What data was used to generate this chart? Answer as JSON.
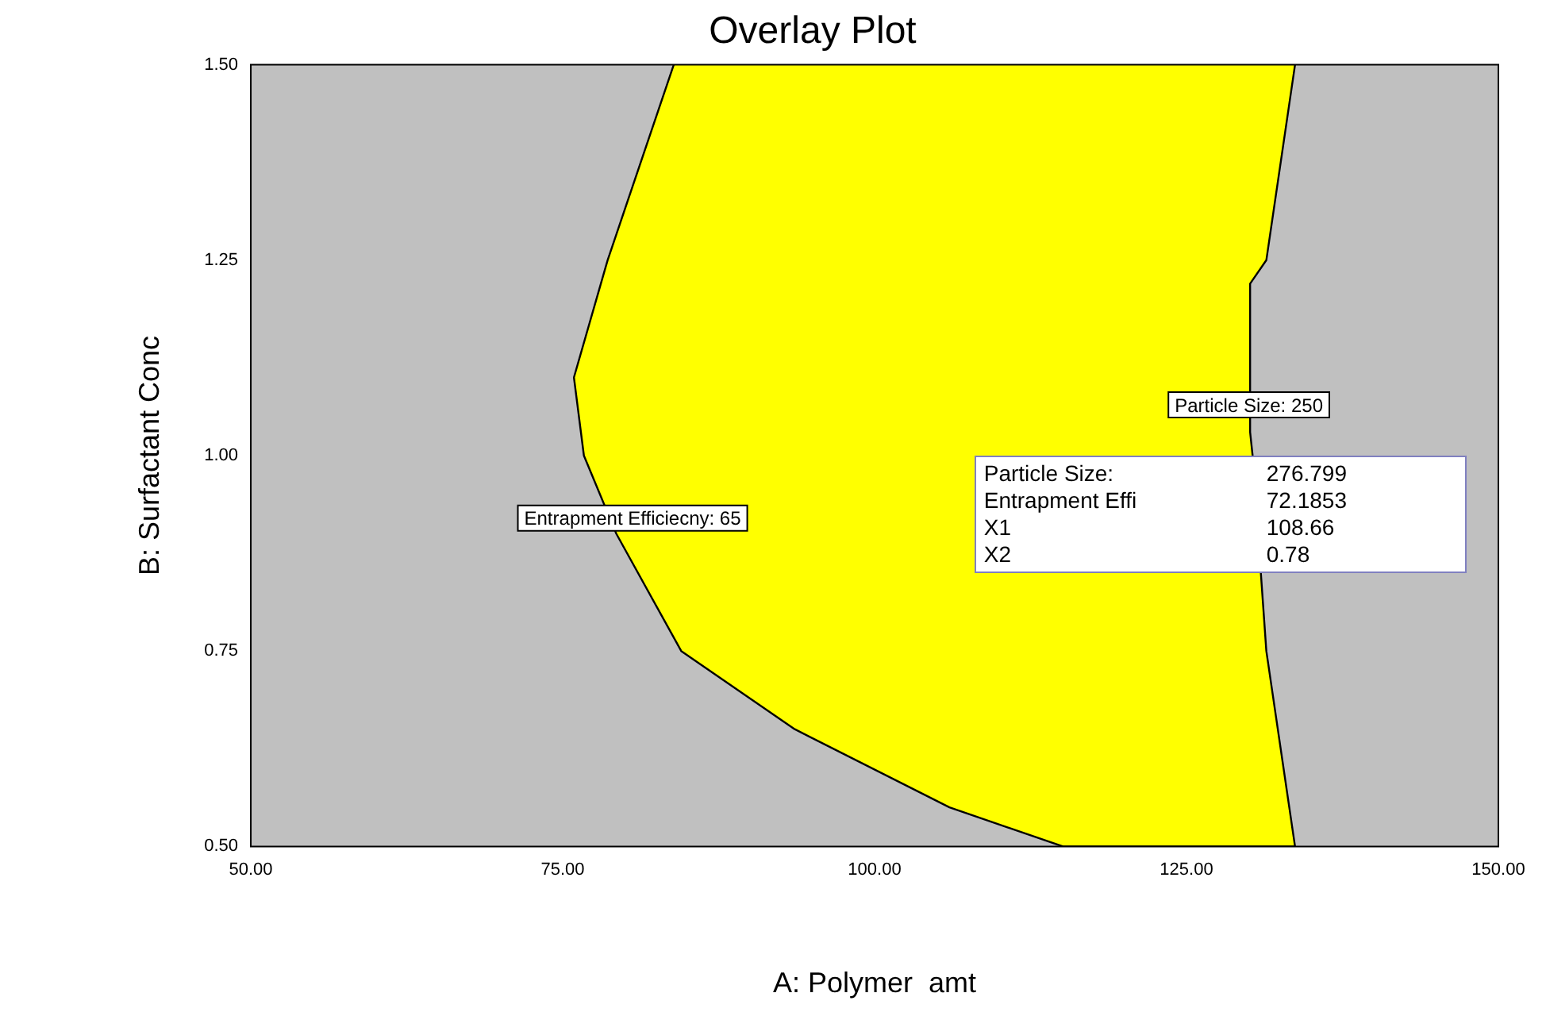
{
  "chart_data": {
    "type": "area",
    "title": "Overlay Plot",
    "xlabel": "A: Polymer  amt",
    "ylabel": "B: Surfactant Conc",
    "xlim": [
      50,
      150
    ],
    "xticks": [
      {
        "value": 50,
        "label": "50.00"
      },
      {
        "value": 75,
        "label": "75.00"
      },
      {
        "value": 100,
        "label": "100.00"
      },
      {
        "value": 125,
        "label": "125.00"
      },
      {
        "value": 150,
        "label": "150.00"
      }
    ],
    "ylim": [
      0.5,
      1.5
    ],
    "yticks": [
      {
        "value": 0.5,
        "label": "0.50"
      },
      {
        "value": 0.75,
        "label": "0.75"
      },
      {
        "value": 1.0,
        "label": "1.00"
      },
      {
        "value": 1.25,
        "label": "1.25"
      },
      {
        "value": 1.5,
        "label": "1.50"
      }
    ],
    "series": [
      {
        "type": "area",
        "color": "#ffff00",
        "x": [
          83.9,
          78.6,
          75.9,
          76.7,
          79.3,
          84.5,
          93.6,
          106,
          115.1,
          133.7,
          131.4,
          130.3,
          130.1,
          130.1,
          131.4,
          133.7
        ],
        "values": [
          1.5,
          1.25,
          1.1,
          1.0,
          0.9,
          0.75,
          0.65,
          0.55,
          0.5,
          0.5,
          0.75,
          1.0,
          1.03,
          1.22,
          1.25,
          1.5
        ]
      }
    ],
    "annotations": [
      "Particle Size: 250",
      "Entrapment Efficiecny: 65",
      "Particle Size:",
      "276.799",
      "Entrapment Effi",
      "72.1853",
      "X1",
      "108.66",
      "X2",
      "0.78"
    ],
    "grid": false,
    "legend": false
  }
}
